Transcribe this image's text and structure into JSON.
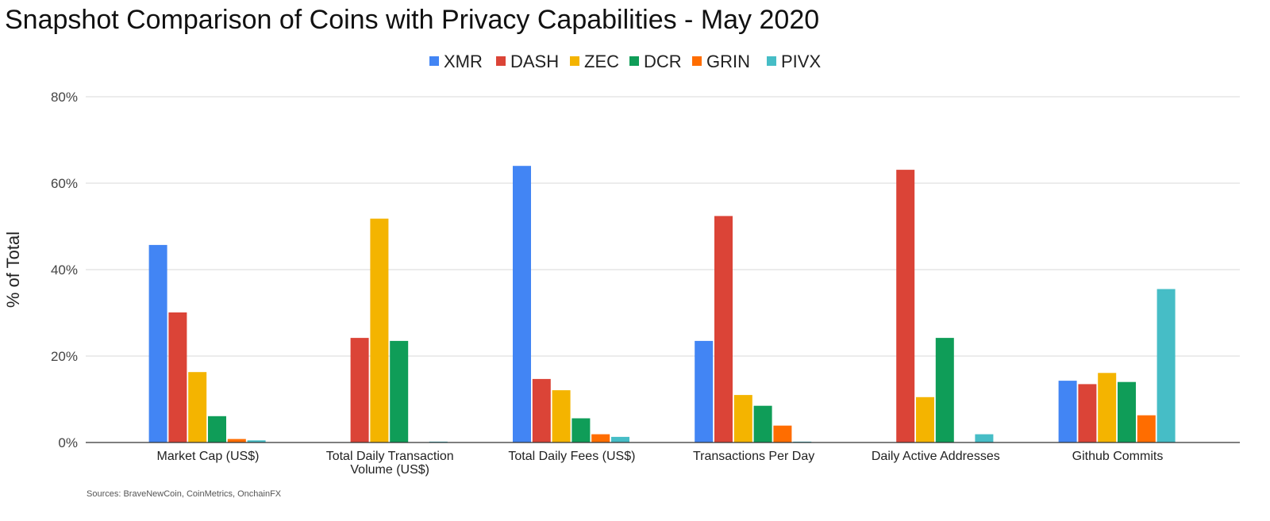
{
  "chart_data": {
    "type": "bar",
    "title": "Snapshot Comparison of Coins with Privacy Capabilities - May 2020",
    "ylabel": "% of Total",
    "xlabel": "",
    "ylim": [
      0,
      80
    ],
    "yticks": [
      0,
      20,
      40,
      60,
      80
    ],
    "ytick_labels": [
      "0%",
      "20%",
      "40%",
      "60%",
      "80%"
    ],
    "grid": true,
    "legend_position": "top",
    "categories": [
      [
        "Market Cap (US$)"
      ],
      [
        "Total Daily Transaction",
        "Volume (US$)"
      ],
      [
        "Total Daily Fees (US$)"
      ],
      [
        "Transactions Per Day"
      ],
      [
        "Daily Active Addresses"
      ],
      [
        "Github Commits"
      ]
    ],
    "series": [
      {
        "name": "XMR",
        "color": "#4285f4",
        "values": [
          45.7,
          0,
          64.0,
          23.5,
          0,
          14.3
        ]
      },
      {
        "name": "DASH",
        "color": "#db4437",
        "values": [
          30.1,
          24.2,
          14.7,
          52.4,
          63.1,
          13.5
        ]
      },
      {
        "name": "ZEC",
        "color": "#f4b400",
        "values": [
          16.3,
          51.8,
          12.1,
          11.0,
          10.5,
          16.1
        ]
      },
      {
        "name": "DCR",
        "color": "#0f9d58",
        "values": [
          6.1,
          23.5,
          5.6,
          8.5,
          24.2,
          14.0
        ]
      },
      {
        "name": "GRIN",
        "color": "#ff6d00",
        "values": [
          0.8,
          0,
          1.9,
          3.9,
          0,
          6.3
        ]
      },
      {
        "name": "PIVX",
        "color": "#46bdc6",
        "values": [
          0.5,
          0.2,
          1.3,
          0.2,
          1.9,
          35.5
        ]
      }
    ]
  },
  "footer": {
    "source": "Sources: BraveNewCoin, CoinMetrics, OnchainFX"
  }
}
